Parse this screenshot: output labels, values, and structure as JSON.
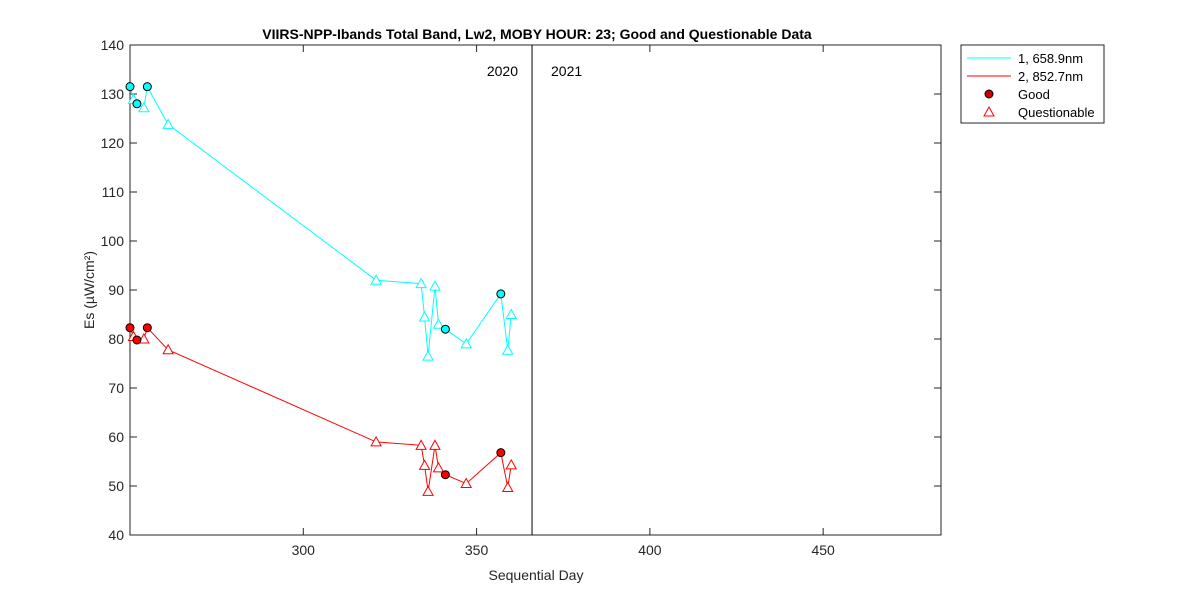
{
  "chart_data": {
    "type": "line",
    "title": "VIIRS-NPP-Ibands Total Band,  Lw2, MOBY HOUR: 23;  Good and Questionable Data",
    "xlabel": "Sequential Day",
    "ylabel": "Es (µW/cm²)",
    "xlim": [
      250,
      484
    ],
    "ylim": [
      40,
      140
    ],
    "xticks": [
      300,
      350,
      400,
      450
    ],
    "yticks": [
      40,
      50,
      60,
      70,
      80,
      90,
      100,
      110,
      120,
      130,
      140
    ],
    "grid": false,
    "year_divider_x": 366,
    "annotations": [
      "2020",
      "2021"
    ],
    "legend_position": "outside-top-right",
    "series": [
      {
        "name": "1, 658.9nm",
        "color": "#00FFFF",
        "x": [
          250,
          251,
          252,
          254,
          255,
          261,
          321,
          334,
          335,
          336,
          338,
          339,
          341,
          347,
          357,
          359,
          360
        ],
        "y": [
          131.5,
          128.9,
          128.0,
          127.2,
          131.5,
          123.8,
          92.0,
          91.3,
          84.5,
          76.5,
          90.8,
          83.0,
          82.0,
          79.0,
          89.2,
          77.7,
          85.0
        ],
        "flags": [
          "good",
          "questionable",
          "good",
          "questionable",
          "good",
          "questionable",
          "questionable",
          "questionable",
          "questionable",
          "questionable",
          "questionable",
          "questionable",
          "good",
          "questionable",
          "good",
          "questionable",
          "questionable"
        ]
      },
      {
        "name": "2, 852.7nm",
        "color": "#FF0000",
        "x": [
          250,
          251,
          252,
          254,
          255,
          261,
          321,
          334,
          335,
          336,
          338,
          339,
          341,
          347,
          357,
          359,
          360
        ],
        "y": [
          82.3,
          80.5,
          79.8,
          80.0,
          82.3,
          77.8,
          59.0,
          58.3,
          54.2,
          48.9,
          58.3,
          53.7,
          52.3,
          50.5,
          56.8,
          49.7,
          54.3
        ],
        "flags": [
          "good",
          "questionable",
          "good",
          "questionable",
          "good",
          "questionable",
          "questionable",
          "questionable",
          "questionable",
          "questionable",
          "questionable",
          "questionable",
          "good",
          "questionable",
          "good",
          "questionable",
          "questionable"
        ]
      }
    ],
    "legend": [
      {
        "label": "1, 658.9nm",
        "symbol": "line",
        "color": "#00FFFF"
      },
      {
        "label": "2, 852.7nm",
        "symbol": "line",
        "color": "#FF0000"
      },
      {
        "label": "Good",
        "symbol": "filled-circle",
        "color": "#CC0000"
      },
      {
        "label": "Questionable",
        "symbol": "open-triangle",
        "color": "#FF0000"
      }
    ]
  }
}
